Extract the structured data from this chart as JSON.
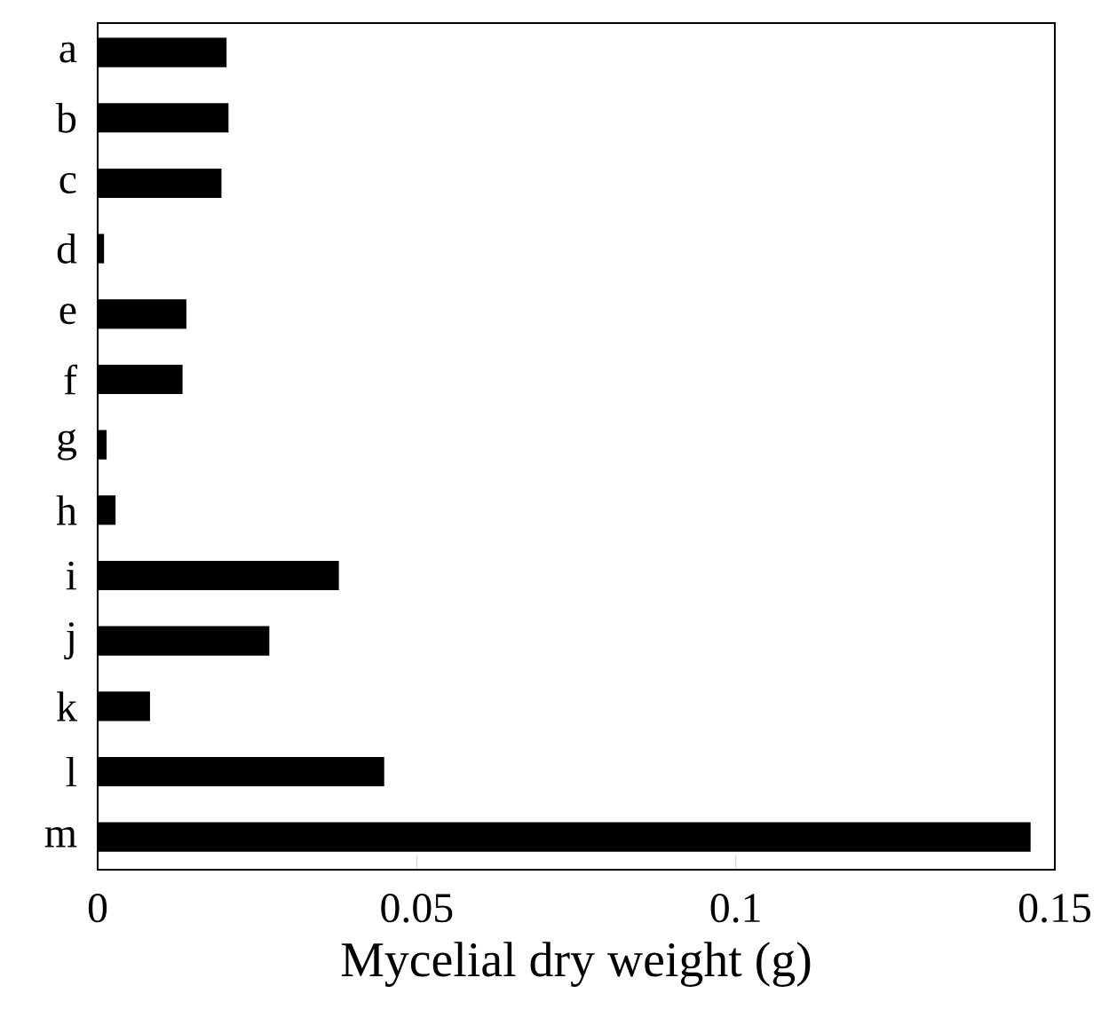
{
  "chart_data": {
    "type": "bar",
    "orientation": "horizontal",
    "xlabel": "Mycelial dry weight (g)",
    "categories": [
      "a",
      "b",
      "c",
      "d",
      "e",
      "f",
      "g",
      "h",
      "i",
      "j",
      "k",
      "l",
      "m"
    ],
    "values": [
      0.0202,
      0.0205,
      0.0194,
      0.001,
      0.0139,
      0.0133,
      0.0014,
      0.0028,
      0.0378,
      0.0269,
      0.0082,
      0.0449,
      0.1462
    ],
    "color": "#000000",
    "xlim": [
      0,
      0.15
    ],
    "xticks": [
      0,
      0.05,
      0.1,
      0.15
    ]
  }
}
